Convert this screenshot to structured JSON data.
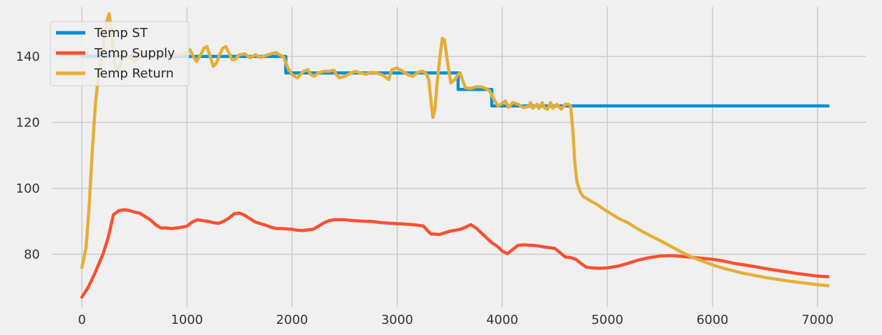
{
  "chart_data": {
    "type": "line",
    "title": "",
    "xlabel": "",
    "ylabel": "",
    "xlim": [
      -280,
      7460
    ],
    "ylim": [
      64,
      155
    ],
    "x_ticks": [
      0,
      1000,
      2000,
      3000,
      4000,
      5000,
      6000,
      7000
    ],
    "y_ticks": [
      80,
      100,
      120,
      140
    ],
    "grid": true,
    "legend_position": "top-left",
    "series": [
      {
        "name": "Temp ST",
        "color": "#008fd5",
        "points": [
          [
            0,
            140
          ],
          [
            1940,
            140
          ],
          [
            1940,
            135
          ],
          [
            3580,
            135
          ],
          [
            3580,
            130
          ],
          [
            3900,
            130
          ],
          [
            3900,
            125
          ],
          [
            7100,
            125
          ]
        ]
      },
      {
        "name": "Temp Supply",
        "color": "#fc4f30",
        "points": [
          [
            0,
            67
          ],
          [
            60,
            70
          ],
          [
            120,
            74
          ],
          [
            200,
            80
          ],
          [
            250,
            85
          ],
          [
            300,
            92
          ],
          [
            350,
            93.2
          ],
          [
            400,
            93.5
          ],
          [
            450,
            93.3
          ],
          [
            500,
            92.8
          ],
          [
            550,
            92.5
          ],
          [
            600,
            91.5
          ],
          [
            650,
            90.5
          ],
          [
            700,
            89
          ],
          [
            750,
            88
          ],
          [
            800,
            88
          ],
          [
            850,
            87.8
          ],
          [
            900,
            88
          ],
          [
            950,
            88.2
          ],
          [
            1000,
            88.5
          ],
          [
            1050,
            89.8
          ],
          [
            1100,
            90.5
          ],
          [
            1150,
            90.2
          ],
          [
            1200,
            90
          ],
          [
            1250,
            89.6
          ],
          [
            1300,
            89.4
          ],
          [
            1350,
            90
          ],
          [
            1400,
            91
          ],
          [
            1450,
            92.3
          ],
          [
            1500,
            92.5
          ],
          [
            1550,
            91.8
          ],
          [
            1600,
            90.8
          ],
          [
            1650,
            89.8
          ],
          [
            1700,
            89.3
          ],
          [
            1750,
            88.8
          ],
          [
            1800,
            88.2
          ],
          [
            1850,
            87.8
          ],
          [
            1900,
            87.8
          ],
          [
            1950,
            87.7
          ],
          [
            2000,
            87.6
          ],
          [
            2050,
            87.3
          ],
          [
            2100,
            87.2
          ],
          [
            2150,
            87.4
          ],
          [
            2200,
            87.6
          ],
          [
            2250,
            88.5
          ],
          [
            2300,
            89.5
          ],
          [
            2350,
            90.2
          ],
          [
            2400,
            90.5
          ],
          [
            2450,
            90.5
          ],
          [
            2500,
            90.5
          ],
          [
            2550,
            90.3
          ],
          [
            2600,
            90.2
          ],
          [
            2650,
            90.1
          ],
          [
            2700,
            90
          ],
          [
            2750,
            90
          ],
          [
            2800,
            89.8
          ],
          [
            2850,
            89.6
          ],
          [
            2900,
            89.5
          ],
          [
            2950,
            89.4
          ],
          [
            3000,
            89.3
          ],
          [
            3050,
            89.2
          ],
          [
            3100,
            89.1
          ],
          [
            3150,
            89
          ],
          [
            3200,
            88.8
          ],
          [
            3250,
            88.6
          ],
          [
            3280,
            87.5
          ],
          [
            3320,
            86.2
          ],
          [
            3400,
            86
          ],
          [
            3450,
            86.5
          ],
          [
            3500,
            87
          ],
          [
            3550,
            87.3
          ],
          [
            3600,
            87.6
          ],
          [
            3650,
            88.2
          ],
          [
            3700,
            89
          ],
          [
            3750,
            88
          ],
          [
            3800,
            86.5
          ],
          [
            3850,
            85
          ],
          [
            3900,
            83.5
          ],
          [
            3950,
            82.5
          ],
          [
            4000,
            81
          ],
          [
            4050,
            80.2
          ],
          [
            4100,
            81.5
          ],
          [
            4150,
            82.7
          ],
          [
            4200,
            82.9
          ],
          [
            4250,
            82.8
          ],
          [
            4300,
            82.7
          ],
          [
            4350,
            82.5
          ],
          [
            4400,
            82.2
          ],
          [
            4450,
            82
          ],
          [
            4500,
            81.8
          ],
          [
            4550,
            80.5
          ],
          [
            4600,
            79.2
          ],
          [
            4650,
            79
          ],
          [
            4700,
            78.5
          ],
          [
            4750,
            77.2
          ],
          [
            4800,
            76.1
          ],
          [
            4850,
            75.9
          ],
          [
            4900,
            75.8
          ],
          [
            4950,
            75.8
          ],
          [
            5000,
            75.9
          ],
          [
            5100,
            76.4
          ],
          [
            5200,
            77.3
          ],
          [
            5300,
            78.3
          ],
          [
            5400,
            79
          ],
          [
            5500,
            79.5
          ],
          [
            5600,
            79.6
          ],
          [
            5700,
            79.4
          ],
          [
            5800,
            79.1
          ],
          [
            5900,
            78.8
          ],
          [
            6000,
            78.5
          ],
          [
            6100,
            78
          ],
          [
            6200,
            77.3
          ],
          [
            6300,
            76.8
          ],
          [
            6400,
            76.3
          ],
          [
            6500,
            75.7
          ],
          [
            6600,
            75.2
          ],
          [
            6700,
            74.7
          ],
          [
            6800,
            74.2
          ],
          [
            6900,
            73.8
          ],
          [
            7000,
            73.4
          ],
          [
            7100,
            73.2
          ]
        ]
      },
      {
        "name": "Temp Return",
        "color": "#e5ae38",
        "points": [
          [
            0,
            76
          ],
          [
            40,
            82
          ],
          [
            70,
            95
          ],
          [
            100,
            112
          ],
          [
            130,
            126
          ],
          [
            160,
            135
          ],
          [
            200,
            142
          ],
          [
            240,
            151
          ],
          [
            260,
            153
          ],
          [
            280,
            148
          ],
          [
            310,
            138
          ],
          [
            340,
            135
          ],
          [
            370,
            138
          ],
          [
            400,
            141
          ],
          [
            450,
            139.8
          ],
          [
            500,
            138.5
          ],
          [
            550,
            140
          ],
          [
            600,
            141.3
          ],
          [
            650,
            140.2
          ],
          [
            700,
            139.8
          ],
          [
            750,
            140.5
          ],
          [
            800,
            140.3
          ],
          [
            850,
            140.2
          ],
          [
            900,
            140.5
          ],
          [
            950,
            140.6
          ],
          [
            1000,
            141.3
          ],
          [
            1030,
            142
          ],
          [
            1060,
            140
          ],
          [
            1090,
            138.5
          ],
          [
            1130,
            140.5
          ],
          [
            1160,
            142.5
          ],
          [
            1190,
            143
          ],
          [
            1220,
            140
          ],
          [
            1250,
            137
          ],
          [
            1280,
            138
          ],
          [
            1310,
            140.5
          ],
          [
            1340,
            142.5
          ],
          [
            1370,
            143
          ],
          [
            1400,
            141
          ],
          [
            1430,
            139
          ],
          [
            1460,
            139.2
          ],
          [
            1500,
            140.5
          ],
          [
            1550,
            140.8
          ],
          [
            1600,
            139.6
          ],
          [
            1650,
            140.5
          ],
          [
            1700,
            139.7
          ],
          [
            1750,
            140.3
          ],
          [
            1800,
            140.8
          ],
          [
            1850,
            141.2
          ],
          [
            1880,
            140.5
          ],
          [
            1920,
            139.8
          ],
          [
            1960,
            136.5
          ],
          [
            2000,
            134.5
          ],
          [
            2050,
            133.5
          ],
          [
            2080,
            134.5
          ],
          [
            2110,
            135.5
          ],
          [
            2150,
            136
          ],
          [
            2180,
            134.5
          ],
          [
            2210,
            134
          ],
          [
            2250,
            135
          ],
          [
            2300,
            135.5
          ],
          [
            2350,
            135.5
          ],
          [
            2400,
            135.8
          ],
          [
            2420,
            134.5
          ],
          [
            2450,
            133.5
          ],
          [
            2500,
            134
          ],
          [
            2550,
            134.8
          ],
          [
            2600,
            135.5
          ],
          [
            2650,
            135
          ],
          [
            2700,
            134.6
          ],
          [
            2750,
            135.2
          ],
          [
            2800,
            135
          ],
          [
            2850,
            134.5
          ],
          [
            2880,
            134
          ],
          [
            2920,
            133
          ],
          [
            2950,
            136
          ],
          [
            3000,
            136.5
          ],
          [
            3050,
            135.5
          ],
          [
            3100,
            134.5
          ],
          [
            3150,
            134
          ],
          [
            3200,
            135.3
          ],
          [
            3250,
            135.5
          ],
          [
            3280,
            134.5
          ],
          [
            3300,
            133
          ],
          [
            3320,
            127
          ],
          [
            3340,
            121.5
          ],
          [
            3360,
            124
          ],
          [
            3380,
            132
          ],
          [
            3410,
            141
          ],
          [
            3430,
            145.5
          ],
          [
            3450,
            145
          ],
          [
            3480,
            138
          ],
          [
            3510,
            132
          ],
          [
            3550,
            133
          ],
          [
            3580,
            134.5
          ],
          [
            3600,
            135
          ],
          [
            3620,
            133
          ],
          [
            3650,
            130.5
          ],
          [
            3700,
            130.3
          ],
          [
            3750,
            130.8
          ],
          [
            3800,
            130.8
          ],
          [
            3850,
            130.2
          ],
          [
            3880,
            129.5
          ],
          [
            3920,
            127
          ],
          [
            3960,
            125
          ],
          [
            4000,
            125.8
          ],
          [
            4030,
            126.5
          ],
          [
            4060,
            124.5
          ],
          [
            4100,
            126
          ],
          [
            4150,
            125.5
          ],
          [
            4200,
            124.5
          ],
          [
            4250,
            124.8
          ],
          [
            4270,
            126
          ],
          [
            4290,
            124.3
          ],
          [
            4330,
            125.5
          ],
          [
            4350,
            124.2
          ],
          [
            4380,
            126
          ],
          [
            4400,
            124.5
          ],
          [
            4430,
            124
          ],
          [
            4460,
            126
          ],
          [
            4480,
            124.3
          ],
          [
            4520,
            125.5
          ],
          [
            4560,
            124
          ],
          [
            4600,
            125.5
          ],
          [
            4630,
            125.5
          ],
          [
            4650,
            125
          ],
          [
            4670,
            118
          ],
          [
            4690,
            108
          ],
          [
            4710,
            102
          ],
          [
            4740,
            99
          ],
          [
            4770,
            97.5
          ],
          [
            4800,
            97
          ],
          [
            4850,
            96
          ],
          [
            4900,
            95.2
          ],
          [
            4950,
            94
          ],
          [
            5000,
            93
          ],
          [
            5100,
            91
          ],
          [
            5200,
            89.5
          ],
          [
            5300,
            87.5
          ],
          [
            5400,
            85.8
          ],
          [
            5500,
            84.2
          ],
          [
            5600,
            82.5
          ],
          [
            5700,
            80.8
          ],
          [
            5800,
            79.2
          ],
          [
            5900,
            78
          ],
          [
            6000,
            76.8
          ],
          [
            6100,
            75.8
          ],
          [
            6200,
            75
          ],
          [
            6300,
            74.2
          ],
          [
            6400,
            73.6
          ],
          [
            6500,
            73
          ],
          [
            6600,
            72.5
          ],
          [
            6700,
            72
          ],
          [
            6800,
            71.6
          ],
          [
            6900,
            71.2
          ],
          [
            7000,
            70.8
          ],
          [
            7100,
            70.5
          ]
        ]
      }
    ]
  }
}
